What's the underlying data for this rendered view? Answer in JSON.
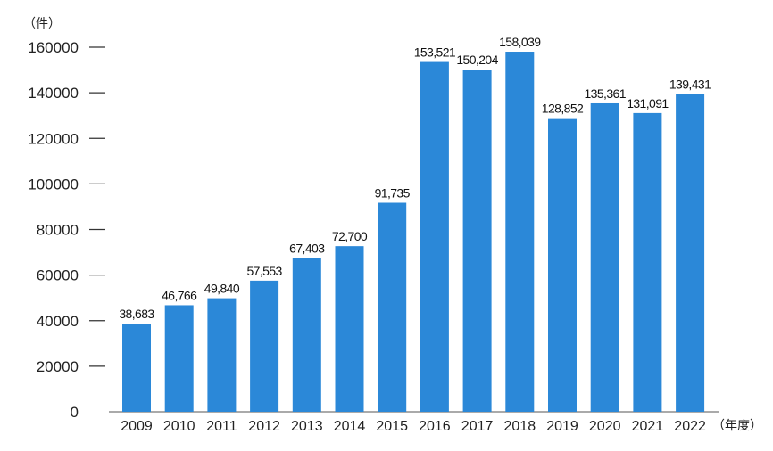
{
  "chart_data": {
    "type": "bar",
    "y_unit": "（件）",
    "x_unit": "（年度）",
    "categories": [
      "2009",
      "2010",
      "2011",
      "2012",
      "2013",
      "2014",
      "2015",
      "2016",
      "2017",
      "2018",
      "2019",
      "2020",
      "2021",
      "2022"
    ],
    "values": [
      38683,
      46766,
      49840,
      57553,
      67403,
      72700,
      91735,
      153521,
      150204,
      158039,
      128852,
      135361,
      131091,
      139431
    ],
    "data_labels": [
      "38,683",
      "46,766",
      "49,840",
      "57,553",
      "67,403",
      "72,700",
      "91,735",
      "153,521",
      "150,204",
      "158,039",
      "128,852",
      "135,361",
      "131,091",
      "139,431"
    ],
    "yticks": [
      0,
      20000,
      40000,
      60000,
      80000,
      100000,
      120000,
      140000,
      160000
    ],
    "ytick_labels": [
      "0",
      "20000",
      "40000",
      "60000",
      "80000",
      "100000",
      "120000",
      "140000",
      "160000"
    ],
    "ylim": [
      0,
      160000
    ],
    "bar_color": "#2b88d8",
    "grid": false,
    "legend": "none"
  }
}
